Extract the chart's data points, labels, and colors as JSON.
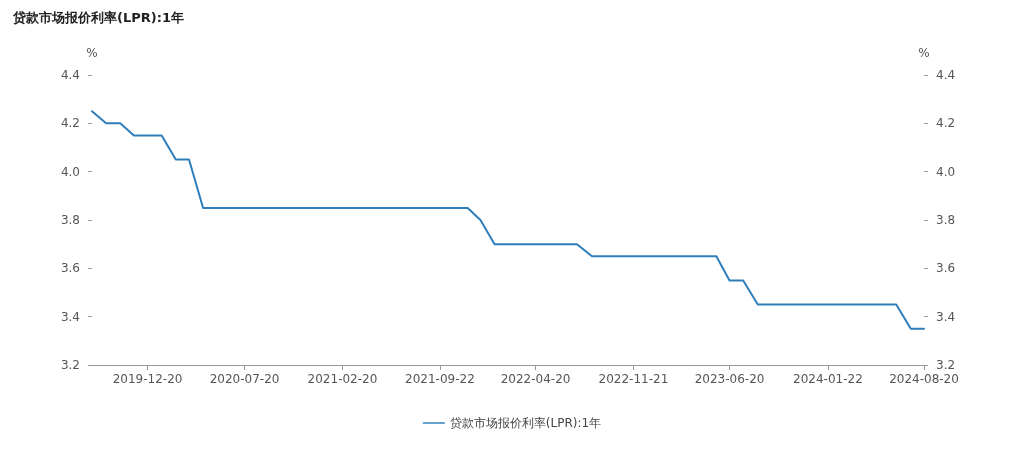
{
  "chart_data": {
    "type": "line",
    "title": "贷款市场报价利率(LPR):1年",
    "ylabel": "%",
    "y2label": "%",
    "x": [
      "2019-08-20",
      "2019-09-20",
      "2019-10-21",
      "2019-11-20",
      "2019-12-20",
      "2020-01-20",
      "2020-02-20",
      "2020-03-20",
      "2020-04-20",
      "2020-05-20",
      "2020-06-22",
      "2020-07-20",
      "2020-08-20",
      "2020-09-22",
      "2020-10-20",
      "2020-11-20",
      "2020-12-21",
      "2021-01-20",
      "2021-02-20",
      "2021-03-22",
      "2021-04-20",
      "2021-05-20",
      "2021-06-21",
      "2021-07-20",
      "2021-08-20",
      "2021-09-22",
      "2021-10-20",
      "2021-11-22",
      "2021-12-20",
      "2022-01-20",
      "2022-02-21",
      "2022-03-21",
      "2022-04-20",
      "2022-05-20",
      "2022-06-20",
      "2022-07-20",
      "2022-08-22",
      "2022-09-20",
      "2022-10-20",
      "2022-11-21",
      "2022-12-20",
      "2023-01-20",
      "2023-02-20",
      "2023-03-20",
      "2023-04-20",
      "2023-05-22",
      "2023-06-20",
      "2023-07-20",
      "2023-08-21",
      "2023-09-20",
      "2023-10-20",
      "2023-11-20",
      "2023-12-20",
      "2024-01-22",
      "2024-02-20",
      "2024-03-20",
      "2024-04-22",
      "2024-05-20",
      "2024-06-20",
      "2024-07-22",
      "2024-08-20"
    ],
    "series": [
      {
        "name": "贷款市场报价利率(LPR):1年",
        "color": "#2f7ebc",
        "values": [
          4.25,
          4.2,
          4.2,
          4.15,
          4.15,
          4.15,
          4.05,
          4.05,
          3.85,
          3.85,
          3.85,
          3.85,
          3.85,
          3.85,
          3.85,
          3.85,
          3.85,
          3.85,
          3.85,
          3.85,
          3.85,
          3.85,
          3.85,
          3.85,
          3.85,
          3.85,
          3.85,
          3.85,
          3.8,
          3.7,
          3.7,
          3.7,
          3.7,
          3.7,
          3.7,
          3.7,
          3.65,
          3.65,
          3.65,
          3.65,
          3.65,
          3.65,
          3.65,
          3.65,
          3.65,
          3.65,
          3.55,
          3.55,
          3.45,
          3.45,
          3.45,
          3.45,
          3.45,
          3.45,
          3.45,
          3.45,
          3.45,
          3.45,
          3.45,
          3.35,
          3.35
        ]
      }
    ],
    "xlim": [
      "2019-08-20",
      "2024-08-20"
    ],
    "xticks": [
      "2019-12-20",
      "2020-07-20",
      "2021-02-20",
      "2021-09-22",
      "2022-04-20",
      "2022-11-21",
      "2023-06-20",
      "2024-01-22",
      "2024-08-20"
    ],
    "ylim": [
      3.2,
      4.4
    ],
    "yticks": [
      3.2,
      3.4,
      3.6,
      3.8,
      {
        "value": 4.0,
        "label": "4.0"
      },
      4.2,
      4.4
    ],
    "y2lim": [
      3.2,
      4.4
    ],
    "y2ticks": [
      3.2,
      3.4,
      3.6,
      3.8,
      {
        "value": 4.0,
        "label": "4.0"
      },
      4.2,
      4.4
    ],
    "grid": false,
    "legend": "bottom",
    "marker": "none",
    "line_style": "solid"
  }
}
